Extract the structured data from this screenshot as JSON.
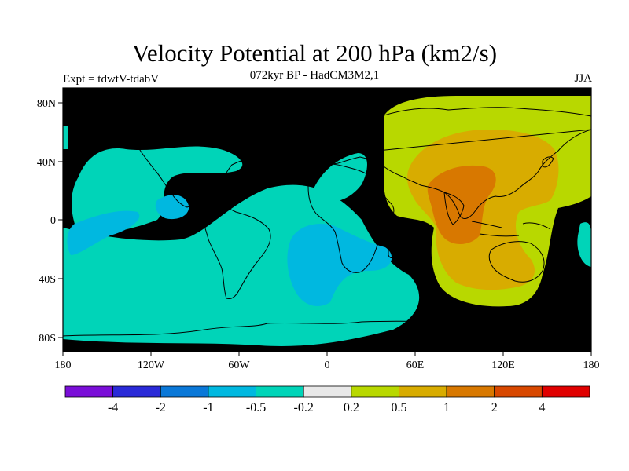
{
  "header": {
    "title": "Velocity Potential at 200 hPa (km2/s)",
    "subtitle": "072kyr BP - HadCM3M2,1",
    "experiment": "Expt = tdwtV-tdabV",
    "season": "JJA"
  },
  "axes": {
    "lon_ticks": [
      "180",
      "120W",
      "60W",
      "0",
      "60E",
      "120E",
      "180"
    ],
    "lat_ticks": [
      "80N",
      "40N",
      "0",
      "40S",
      "80S"
    ]
  },
  "colorbar": {
    "colors": [
      "#7a0ed8",
      "#2a2ad8",
      "#0a78d8",
      "#00b8e0",
      "#00d4b8",
      "#e8e8e8",
      "#b8d800",
      "#d8ac00",
      "#d87800",
      "#d84800",
      "#e00000"
    ],
    "labels": [
      "-4",
      "-2",
      "-1",
      "-0.5",
      "-0.2",
      "0.2",
      "0.5",
      "1",
      "2",
      "4"
    ]
  },
  "field_colors": {
    "background": "#e8e8e8",
    "neg_weak": "#00d4b8",
    "neg_mod": "#00b8e0",
    "pos_weak": "#b8d800",
    "pos_mod": "#d8ac00",
    "pos_strong": "#d87800"
  }
}
